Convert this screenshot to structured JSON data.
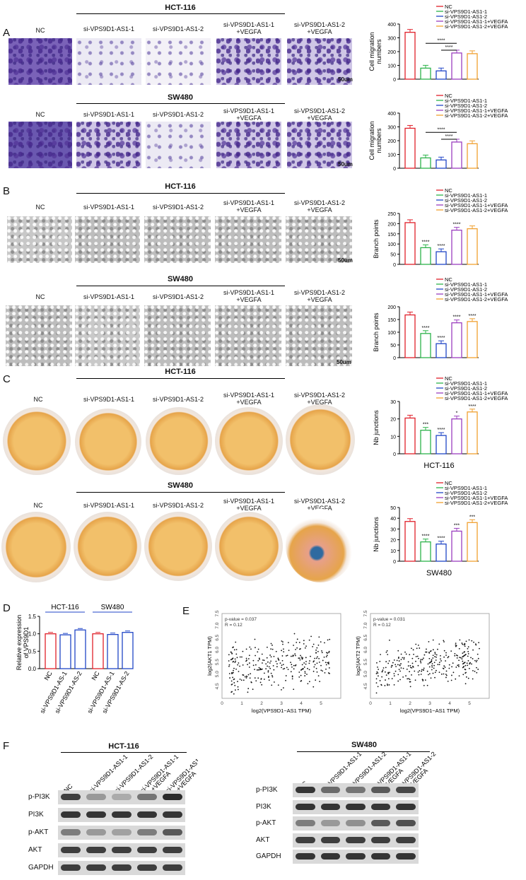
{
  "labels": {
    "A": "A",
    "B": "B",
    "C": "C",
    "D": "D",
    "E": "E",
    "F": "F",
    "hct": "HCT-116",
    "sw": "SW480",
    "nc": "NC",
    "si1": "si-VPS9D1-AS1-1",
    "si2": "si-VPS9D1-AS1-2",
    "si1v_a": "si-VPS9D1-AS1-1",
    "si1v_b": "+VEGFA",
    "si2v_a": "si-VPS9D1-AS1-2",
    "si2v_b": "+VEGFA",
    "scale": "50um",
    "stars4": "****",
    "stars3": "***",
    "star1": "*"
  },
  "legend": [
    "NC",
    "si-VPS9D1-AS1-1",
    "si-VPS9D1-AS1-2",
    "si-VPS9D1-AS1-1+VEGFA",
    "si-VPS9D1-AS1-2+VEGFA"
  ],
  "colors": {
    "nc": "#e0202a",
    "si1": "#2db34a",
    "si2": "#2146c7",
    "si1v": "#9b3fbf",
    "si2v": "#f0a030"
  },
  "chart_data": [
    {
      "type": "bar",
      "id": "A-HCT",
      "ylabel": "Cell migration numbers",
      "ylim": [
        0,
        400
      ],
      "yticks": [
        0,
        100,
        200,
        300,
        400
      ],
      "categories": [
        "NC",
        "si-VPS9D1-AS1-1",
        "si-VPS9D1-AS1-2",
        "si-VPS9D1-AS1-1+VEGFA",
        "si-VPS9D1-AS1-2+VEGFA"
      ],
      "values": [
        340,
        80,
        60,
        190,
        185
      ]
    },
    {
      "type": "bar",
      "id": "A-SW",
      "ylabel": "Cell migration numbers",
      "ylim": [
        0,
        400
      ],
      "yticks": [
        0,
        100,
        200,
        300,
        400
      ],
      "categories": [
        "NC",
        "si-VPS9D1-AS1-1",
        "si-VPS9D1-AS1-2",
        "si-VPS9D1-AS1-1+VEGFA",
        "si-VPS9D1-AS1-2+VEGFA"
      ],
      "values": [
        290,
        75,
        60,
        190,
        178
      ]
    },
    {
      "type": "bar",
      "id": "B-HCT",
      "ylabel": "Branch points",
      "ylim": [
        0,
        250
      ],
      "yticks": [
        0,
        50,
        100,
        150,
        200,
        250
      ],
      "categories": [
        "NC",
        "si-VPS9D1-AS1-1",
        "si-VPS9D1-AS1-2",
        "si-VPS9D1-AS1-1+VEGFA",
        "si-VPS9D1-AS1-2+VEGFA"
      ],
      "values": [
        205,
        82,
        62,
        168,
        175
      ]
    },
    {
      "type": "bar",
      "id": "B-SW",
      "ylabel": "Branch points",
      "ylim": [
        0,
        200
      ],
      "yticks": [
        0,
        50,
        100,
        150,
        200
      ],
      "categories": [
        "NC",
        "si-VPS9D1-AS1-1",
        "si-VPS9D1-AS1-2",
        "si-VPS9D1-AS1-1+VEGFA",
        "si-VPS9D1-AS1-2+VEGFA"
      ],
      "values": [
        168,
        95,
        55,
        137,
        142
      ]
    },
    {
      "type": "bar",
      "id": "C-HCT",
      "ylabel": "Nb junctions",
      "xlabel": "HCT-116",
      "ylim": [
        0,
        30
      ],
      "yticks": [
        0,
        10,
        20,
        30
      ],
      "categories": [
        "NC",
        "si-VPS9D1-AS1-1",
        "si-VPS9D1-AS1-2",
        "si-VPS9D1-AS1-1+VEGFA",
        "si-VPS9D1-AS1-2+VEGFA"
      ],
      "values": [
        20.5,
        13.5,
        10.5,
        20,
        24
      ]
    },
    {
      "type": "bar",
      "id": "C-SW",
      "ylabel": "Nb junctions",
      "xlabel": "SW480",
      "ylim": [
        0,
        50
      ],
      "yticks": [
        0,
        10,
        20,
        30,
        40,
        50
      ],
      "categories": [
        "NC",
        "si-VPS9D1-AS1-1",
        "si-VPS9D1-AS1-2",
        "si-VPS9D1-AS1-1+VEGFA",
        "si-VPS9D1-AS1-2+VEGFA"
      ],
      "values": [
        37,
        18,
        16,
        28,
        36
      ]
    },
    {
      "type": "bar",
      "id": "D",
      "ylabel": "Relative expression of VPS9D1",
      "ylim": [
        0,
        1.5
      ],
      "yticks": [
        0.0,
        0.5,
        1.0,
        1.5
      ],
      "groups": [
        "HCT-116",
        "SW480"
      ],
      "categories": [
        "NC",
        "si-VPS9D1-AS-1",
        "si-VPS9D1-AS-2",
        "NC",
        "si-VPS9D1-AS-1",
        "si-VPS9D1-AS-2"
      ],
      "values": [
        1.0,
        0.97,
        1.11,
        1.0,
        0.98,
        1.04
      ]
    },
    {
      "type": "scatter",
      "id": "E1",
      "xlabel": "log2(VPS9D1−AS1 TPM)",
      "ylabel": "log2(AKT1 TPM)",
      "annotation": [
        "p-value = 0.037",
        "R = 0.12"
      ],
      "xlim": [
        0,
        6
      ],
      "ylim": [
        4,
        7.5
      ],
      "xticks": [
        0,
        1,
        2,
        3,
        4,
        5
      ],
      "yticks": [
        4.5,
        5.0,
        5.5,
        6.0,
        6.5,
        7.0,
        7.5
      ]
    },
    {
      "type": "scatter",
      "id": "E2",
      "xlabel": "log2(VPS9D1−AS1 TPM)",
      "ylabel": "log2(AKT2 TPM)",
      "annotation": [
        "p-value = 0.031",
        "R = 0.12"
      ],
      "xlim": [
        0,
        6
      ],
      "ylim": [
        4,
        7.5
      ],
      "xticks": [
        0,
        1,
        2,
        3,
        4,
        5
      ],
      "yticks": [
        4.5,
        5.0,
        5.5,
        6.0,
        6.5,
        7.0,
        7.5
      ]
    }
  ],
  "western": {
    "lanes": [
      "NC",
      "si-VPS9D1-AS1-1",
      "si-VPS9D1-AS1-2",
      "si-VPS9D1-AS1-1 +VEGFA",
      "si-VPS9D1-AS1-2 +VEGFA"
    ],
    "rows": [
      "p-PI3K",
      "PI3K",
      "p-AKT",
      "AKT",
      "GAPDH"
    ]
  }
}
